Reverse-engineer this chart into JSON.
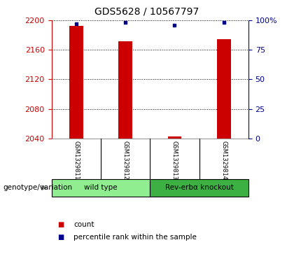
{
  "title": "GDS5628 / 10567797",
  "samples": [
    "GSM1329811",
    "GSM1329812",
    "GSM1329813",
    "GSM1329814"
  ],
  "count_values": [
    2192,
    2172,
    2043,
    2174
  ],
  "percentile_values": [
    97,
    98,
    96,
    98
  ],
  "ylim_left": [
    2040,
    2200
  ],
  "ylim_right": [
    0,
    100
  ],
  "yticks_left": [
    2040,
    2080,
    2120,
    2160,
    2200
  ],
  "yticks_right": [
    0,
    25,
    50,
    75,
    100
  ],
  "ytick_labels_right": [
    "0",
    "25",
    "50",
    "75",
    "100%"
  ],
  "groups": [
    {
      "label": "wild type",
      "samples": [
        0,
        1
      ],
      "color": "#90EE90"
    },
    {
      "label": "Rev-erbα knockout",
      "samples": [
        2,
        3
      ],
      "color": "#3CB043"
    }
  ],
  "bar_color": "#CC0000",
  "dot_color": "#00008B",
  "bar_width": 0.28,
  "background_color": "#ffffff",
  "plot_bg_color": "#ffffff",
  "grid_color": "#000000",
  "left_axis_color": "#CC0000",
  "right_axis_color": "#00008B",
  "legend_items": [
    {
      "color": "#CC0000",
      "label": "count"
    },
    {
      "color": "#00008B",
      "label": "percentile rank within the sample"
    }
  ],
  "genotype_label": "genotype/variation",
  "sample_area_color": "#BEBEBE"
}
